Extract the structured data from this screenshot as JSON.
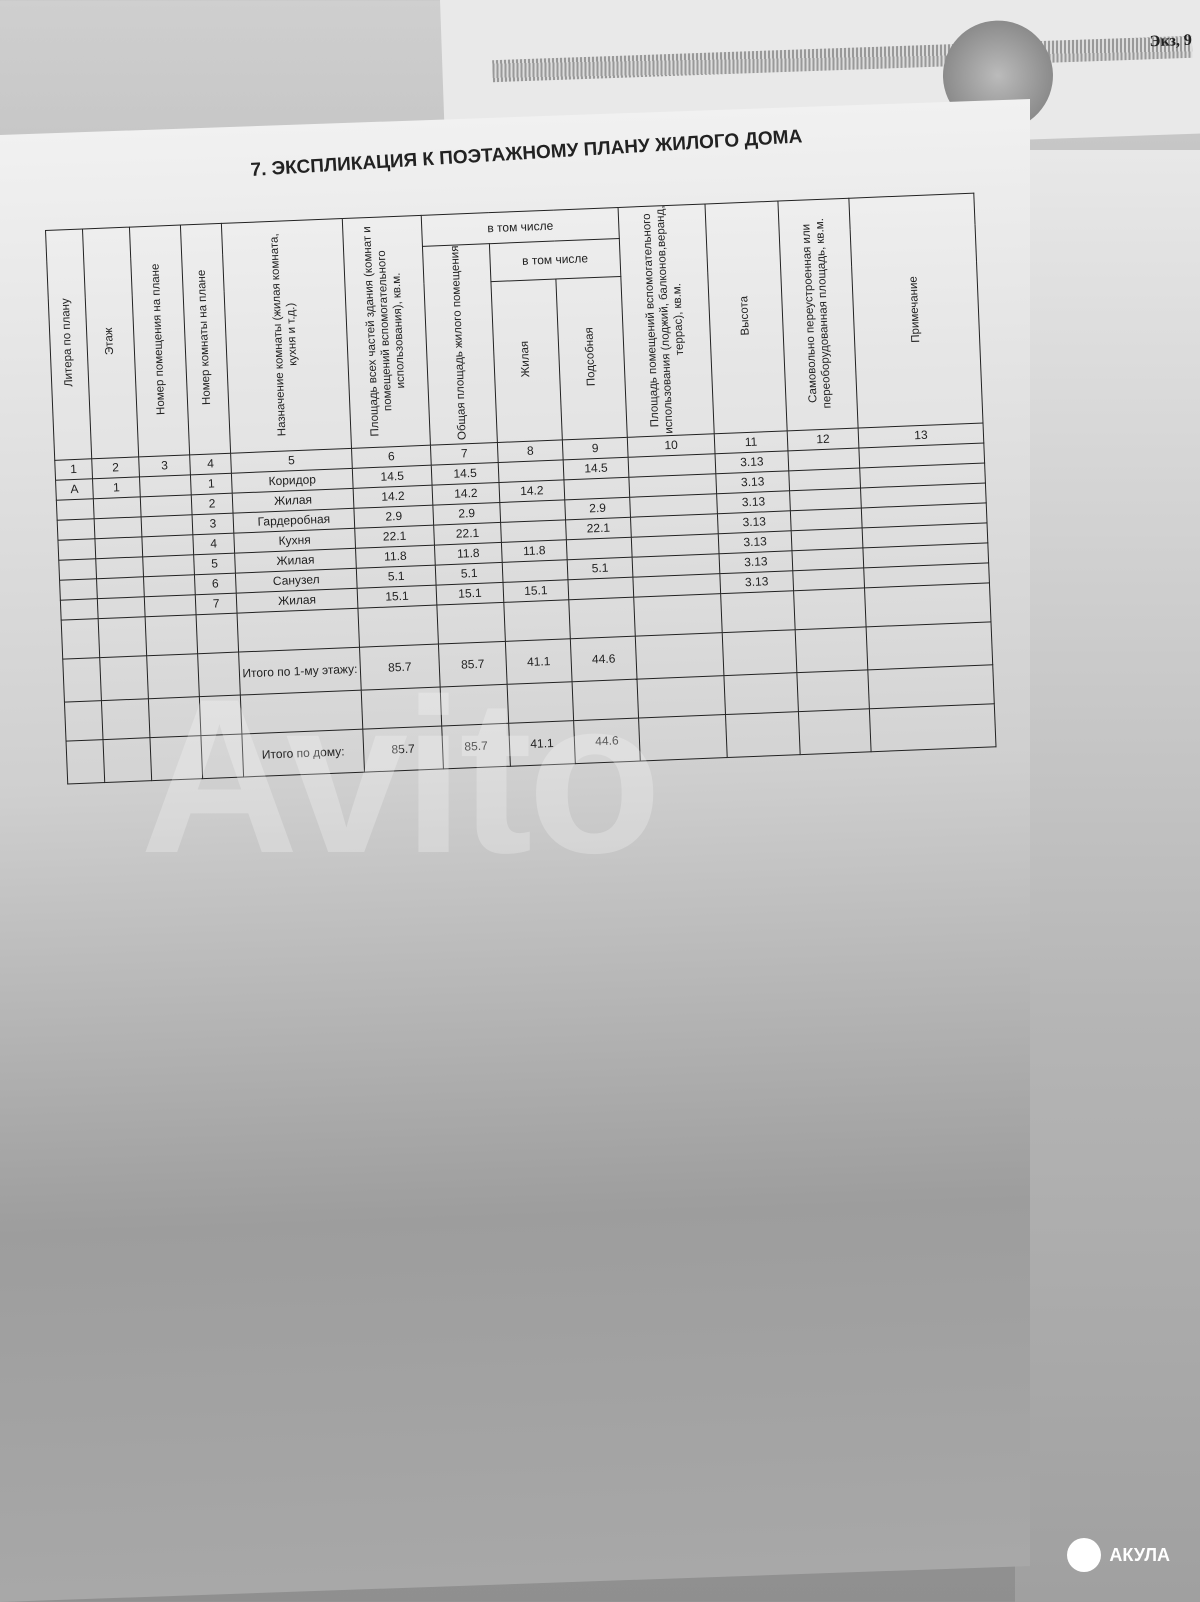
{
  "background_sheet": {
    "label": "Экз, 9"
  },
  "document": {
    "title": "7. ЭКСПЛИКАЦИЯ К ПОЭТАЖНОМУ ПЛАНУ ЖИЛОГО ДОМА",
    "headers": {
      "c1": "Литера по плану",
      "c2": "Этаж",
      "c3": "Номер помещения на плане",
      "c4": "Номер комнаты на плане",
      "c5": "Назначение комнаты (жилая комната, кухня и т.д.)",
      "c6": "Площадь всех частей здания (комнат и помещений вспомогательного использования), кв.м.",
      "group1": "в том числе",
      "c7": "Общая площадь жилого помещения",
      "group2": "в том числе",
      "c8": "Жилая",
      "c9": "Подсобная",
      "c10": "Площадь помещений вспомогательного использования (лоджий, балконов,веранд, террас), кв.м.",
      "c11": "Высота",
      "c12": "Самовольно переустроенная или переоборудованная площадь, кв.м.",
      "c13": "Примечание"
    },
    "column_numbers": [
      "1",
      "2",
      "3",
      "4",
      "5",
      "6",
      "7",
      "8",
      "9",
      "10",
      "11",
      "12",
      "13"
    ],
    "rows": [
      [
        "А",
        "1",
        "",
        "1",
        "Коридор",
        "14.5",
        "14.5",
        "",
        "14.5",
        "",
        "3.13",
        "",
        ""
      ],
      [
        "",
        "",
        "",
        "2",
        "Жилая",
        "14.2",
        "14.2",
        "14.2",
        "",
        "",
        "3.13",
        "",
        ""
      ],
      [
        "",
        "",
        "",
        "3",
        "Гардеробная",
        "2.9",
        "2.9",
        "",
        "2.9",
        "",
        "3.13",
        "",
        ""
      ],
      [
        "",
        "",
        "",
        "4",
        "Кухня",
        "22.1",
        "22.1",
        "",
        "22.1",
        "",
        "3.13",
        "",
        ""
      ],
      [
        "",
        "",
        "",
        "5",
        "Жилая",
        "11.8",
        "11.8",
        "11.8",
        "",
        "",
        "3.13",
        "",
        ""
      ],
      [
        "",
        "",
        "",
        "6",
        "Санузел",
        "5.1",
        "5.1",
        "",
        "5.1",
        "",
        "3.13",
        "",
        ""
      ],
      [
        "",
        "",
        "",
        "7",
        "Жилая",
        "15.1",
        "15.1",
        "15.1",
        "",
        "",
        "3.13",
        "",
        ""
      ]
    ],
    "floor_total": {
      "label": "Итого по 1-му этажу:",
      "c6": "85.7",
      "c7": "85.7",
      "c8": "41.1",
      "c9": "44.6"
    },
    "house_total": {
      "label": "Итого по дому:",
      "c6": "85.7",
      "c7": "85.7",
      "c8": "41.1",
      "c9": "44.6"
    }
  },
  "watermarks": {
    "avito": "Avito",
    "akula": "АКУЛА"
  }
}
